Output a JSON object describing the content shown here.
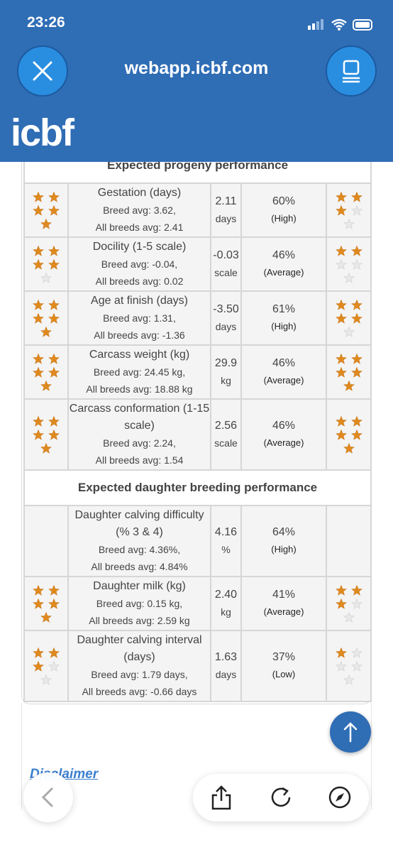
{
  "status_bar": {
    "time": "23:26"
  },
  "browser": {
    "url": "webapp.icbf.com"
  },
  "header": {
    "logo": "icbf"
  },
  "sections": [
    {
      "title": "Expected progeny performance",
      "rows": [
        {
          "trait": "Gestation (days)",
          "breed_avg": "Breed avg: 3.62,",
          "all_breeds_avg": "All breeds avg: 2.41",
          "value": "2.11",
          "unit": "days",
          "reliability": "60%",
          "reliability_label": "(High)",
          "stars_left": 5,
          "stars_right": 3
        },
        {
          "trait": "Docility (1-5 scale)",
          "breed_avg": "Breed avg: -0.04,",
          "all_breeds_avg": "All breeds avg: 0.02",
          "value": "-0.03",
          "unit": "scale",
          "reliability": "46%",
          "reliability_label": "(Average)",
          "stars_left": 4,
          "stars_right": 2
        },
        {
          "trait": "Age at finish (days)",
          "breed_avg": "Breed avg: 1.31,",
          "all_breeds_avg": "All breeds avg: -1.36",
          "value": "-3.50",
          "unit": "days",
          "reliability": "61%",
          "reliability_label": "(High)",
          "stars_left": 5,
          "stars_right": 4
        },
        {
          "trait": "Carcass weight (kg)",
          "breed_avg": "Breed avg: 24.45 kg,",
          "all_breeds_avg": "All breeds avg: 18.88 kg",
          "value": "29.9",
          "unit": "kg",
          "reliability": "46%",
          "reliability_label": "(Average)",
          "stars_left": 5,
          "stars_right": 5
        },
        {
          "trait": "Carcass conformation (1-15 scale)",
          "breed_avg": "Breed avg: 2.24,",
          "all_breeds_avg": "All breeds avg: 1.54",
          "value": "2.56",
          "unit": "scale",
          "reliability": "46%",
          "reliability_label": "(Average)",
          "stars_left": 5,
          "stars_right": 5
        }
      ]
    },
    {
      "title": "Expected daughter breeding performance",
      "rows": [
        {
          "trait": "Daughter calving difficulty (% 3 & 4)",
          "breed_avg": "Breed avg: 4.36%,",
          "all_breeds_avg": "All breeds avg: 4.84%",
          "value": "4.16",
          "unit": "%",
          "reliability": "64%",
          "reliability_label": "(High)",
          "stars_left": null,
          "stars_right": null
        },
        {
          "trait": "Daughter milk (kg)",
          "breed_avg": "Breed avg: 0.15 kg,",
          "all_breeds_avg": "All breeds avg: 2.59 kg",
          "value": "2.40",
          "unit": "kg",
          "reliability": "41%",
          "reliability_label": "(Average)",
          "stars_left": 5,
          "stars_right": 3
        },
        {
          "trait": "Daughter calving interval (days)",
          "breed_avg": "Breed avg: 1.79 days,",
          "all_breeds_avg": "All breeds avg: -0.66 days",
          "value": "1.63",
          "unit": "days",
          "reliability": "37%",
          "reliability_label": "(Low)",
          "stars_left": 3,
          "stars_right": 1
        }
      ]
    }
  ],
  "footer": {
    "link": "Disclaimer"
  }
}
